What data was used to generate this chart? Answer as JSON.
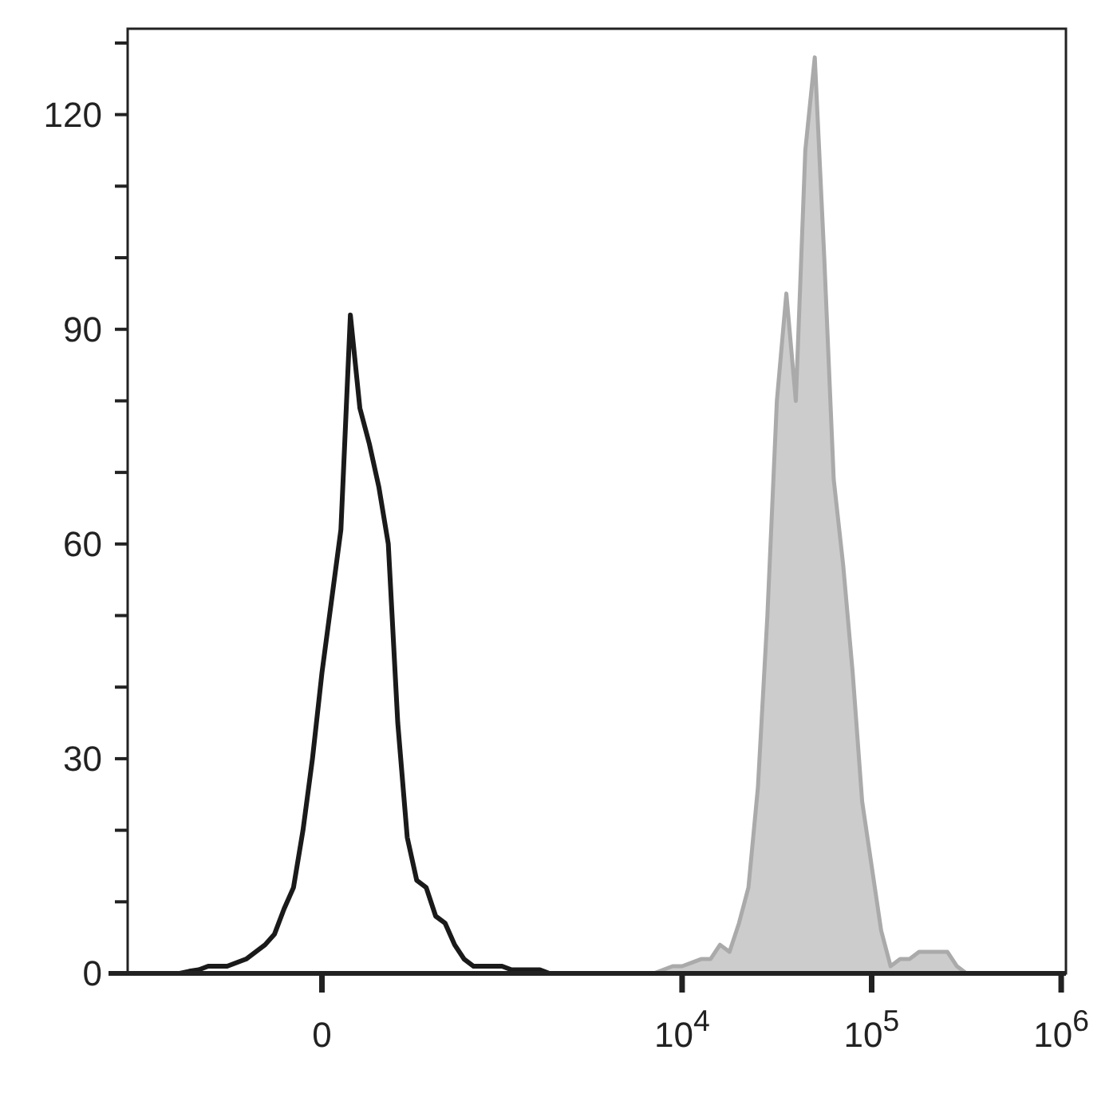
{
  "chart_data": {
    "type": "line",
    "categories": [
      null,
      null,
      null,
      null,
      null,
      null,
      null,
      null,
      null,
      null,
      null,
      null,
      null,
      null,
      null,
      null,
      null,
      null,
      null,
      null,
      "0",
      null,
      null,
      null,
      null,
      null,
      null,
      null,
      null,
      null,
      null,
      null,
      null,
      null,
      null,
      null,
      null,
      null,
      null,
      null,
      null,
      null,
      null,
      null,
      null,
      null,
      null,
      null,
      null,
      null,
      null,
      null,
      null,
      null,
      null,
      null,
      null,
      null,
      "10$^{4}$",
      null,
      null,
      null,
      null,
      null,
      null,
      null,
      null,
      null,
      null,
      null,
      null,
      null,
      null,
      null,
      null,
      null,
      null,
      null,
      "10$^{5}$",
      null,
      null,
      null,
      null,
      null,
      null,
      null,
      null,
      null,
      null,
      null,
      null,
      null,
      null,
      null,
      null,
      null,
      null,
      null,
      "10$^{6}$"
    ],
    "ylim": [
      0,
      132
    ],
    "yticks": [
      0,
      {
        "value": 10,
        "label": null
      },
      {
        "value": 20,
        "label": null
      },
      30,
      {
        "value": 40,
        "label": null
      },
      {
        "value": 50,
        "label": null
      },
      60,
      {
        "value": 70,
        "label": null
      },
      {
        "value": 80,
        "label": null
      },
      90,
      {
        "value": 100,
        "label": null
      },
      {
        "value": 110,
        "label": null
      },
      120,
      {
        "value": 130,
        "label": null
      }
    ],
    "grid": false,
    "series": [
      {
        "type": "area",
        "color": "#aaaaaa",
        "values": [
          0,
          0,
          0,
          0,
          0,
          0,
          0,
          0,
          0,
          0,
          0,
          0,
          0,
          0,
          0,
          0,
          0,
          0,
          0,
          0,
          0,
          0,
          0,
          0,
          0,
          0,
          0,
          0,
          0,
          0,
          0,
          0,
          0,
          0,
          0,
          0,
          0,
          0,
          0,
          0,
          0,
          0,
          0,
          0,
          0,
          0,
          0,
          0,
          0,
          0,
          0,
          0,
          0,
          0,
          0,
          0,
          0.5,
          1,
          1,
          1.5,
          2,
          2,
          4,
          3,
          7,
          12,
          26,
          50,
          80,
          95,
          80,
          115,
          128,
          100,
          69,
          57,
          42,
          24,
          15,
          6,
          1,
          2,
          2,
          3,
          3,
          3,
          3,
          1,
          0,
          0,
          0,
          0,
          0,
          0,
          0,
          0,
          0,
          0,
          0
        ]
      },
      {
        "color": "#1a1a1a",
        "values": [
          0,
          0,
          0,
          0,
          0,
          0,
          0.3,
          0.5,
          1,
          1,
          1,
          1.5,
          2,
          3,
          4,
          5.5,
          9,
          12,
          20,
          30,
          42,
          52,
          62,
          92,
          79,
          74,
          68,
          60,
          35,
          19,
          13,
          12,
          8,
          7,
          4,
          2,
          1,
          1,
          1,
          1,
          0.5,
          0.5,
          0.5,
          0.5,
          0,
          0,
          0,
          0,
          0,
          0,
          0,
          0,
          0,
          0,
          0,
          0,
          0,
          0,
          0,
          0,
          0,
          0,
          0,
          0,
          0,
          0,
          0,
          0,
          0,
          0,
          0,
          0,
          0,
          0,
          0,
          0,
          0,
          0,
          0,
          0,
          0,
          0,
          0,
          0,
          0,
          0,
          0,
          0,
          0,
          0,
          0,
          0,
          0,
          0,
          0,
          0,
          0,
          0,
          0
        ]
      }
    ]
  }
}
